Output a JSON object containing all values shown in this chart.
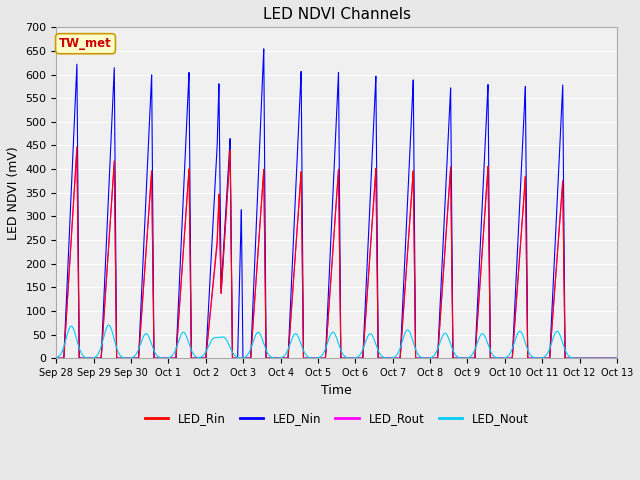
{
  "title": "LED NDVI Channels",
  "xlabel": "Time",
  "ylabel": "LED NDVI (mV)",
  "ylim": [
    0,
    700
  ],
  "yticks": [
    0,
    50,
    100,
    150,
    200,
    250,
    300,
    350,
    400,
    450,
    500,
    550,
    600,
    650,
    700
  ],
  "xtick_labels": [
    "Sep 28",
    "Sep 29",
    "Sep 30",
    "Oct 1",
    "Oct 2",
    "Oct 3",
    "Oct 4",
    "Oct 5",
    "Oct 6",
    "Oct 7",
    "Oct 8",
    "Oct 9",
    "Oct 10",
    "Oct 11",
    "Oct 12",
    "Oct 13"
  ],
  "annotation_text": "TW_met",
  "annotation_color": "#cc0000",
  "annotation_bg": "#ffffcc",
  "annotation_border": "#cc9900",
  "colors": {
    "LED_Rin": "#ff0000",
    "LED_Nin": "#0000ff",
    "LED_Rout": "#ff00ff",
    "LED_Nout": "#00ccff"
  },
  "background_color": "#e8e8e8",
  "plot_bg": "#f0f0f0",
  "grid_color": "#ffffff",
  "title_fontsize": 11
}
